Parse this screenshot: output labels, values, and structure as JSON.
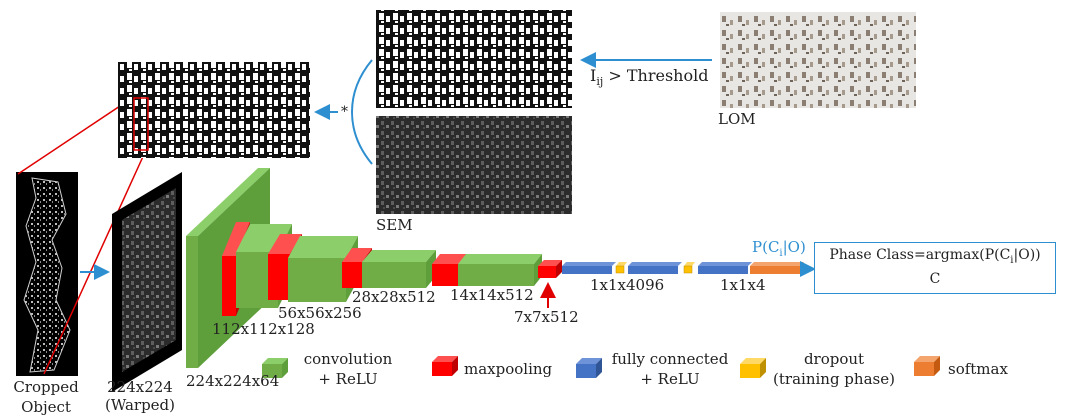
{
  "colors": {
    "conv": "#70ad47",
    "pool": "#ff0000",
    "fc": "#4472c4",
    "dropout": "#ffc000",
    "softmax": "#ed7d31",
    "arrow": "#2e8fd0"
  },
  "labels": {
    "cropped_l1": "Cropped",
    "cropped_l2": "Object",
    "warped_l1": "224x224",
    "warped_l2": "(Warped)",
    "d1": "224x224x64",
    "d2": "112x112x128",
    "d3": "56x56x256",
    "d4": "28x28x512",
    "d5": "14x14x512",
    "d6": "7x7x512",
    "fc": "1x1x4096",
    "fc2": "1x1x4",
    "sem": "SEM",
    "lom": "LOM",
    "threshold_var": "I",
    "threshold_sub": "ij",
    "threshold_rest": " > Threshold",
    "multiply": "*",
    "prob_a": "P(C",
    "prob_sub": "i",
    "prob_b": "|O)",
    "phase_a": "Phase Class=argmax(P(C",
    "phase_sub": "i",
    "phase_b": "|O))",
    "phase_c": "C"
  },
  "legend": {
    "conv_l1": "convolution",
    "conv_l2": "+ ReLU",
    "pool": "maxpooling",
    "fc_l1": "fully connected",
    "fc_l2": "+ ReLU",
    "drop_l1": "dropout",
    "drop_l2": "(training phase)",
    "softmax": "softmax"
  }
}
